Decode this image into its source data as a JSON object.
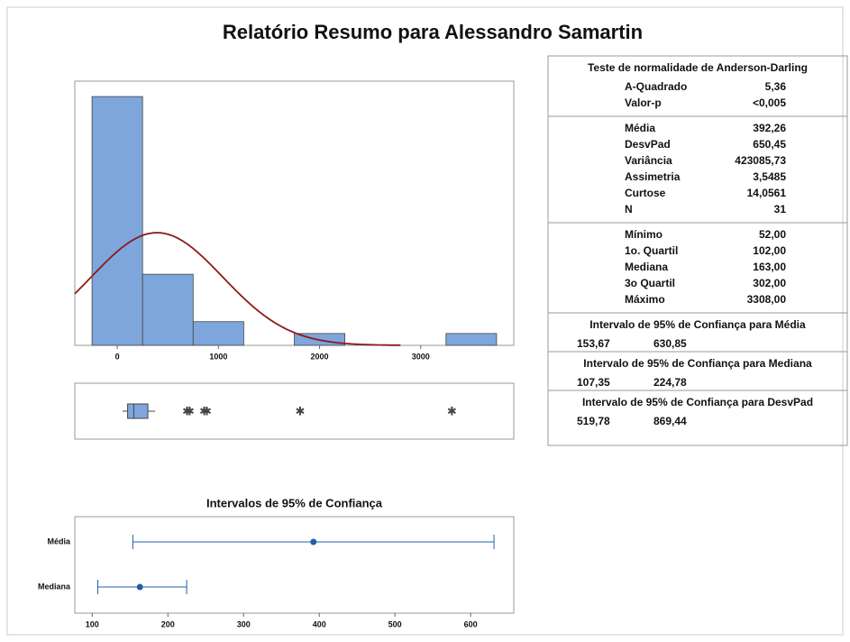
{
  "title": "Relatório Resumo para Alessandro Samartin",
  "chart_data": [
    {
      "type": "histogram",
      "bins": [
        -250,
        250,
        750,
        1250,
        1750,
        2250,
        2750,
        3250,
        3750
      ],
      "values": [
        21,
        6,
        2,
        0,
        1,
        0,
        0,
        1
      ],
      "color": "#7ea6dc",
      "xlim": [
        -420,
        3920
      ],
      "ylim": [
        0,
        22.3
      ],
      "xticks": [
        0,
        1000,
        2000,
        3000
      ],
      "fit": {
        "mean": 392.26,
        "sd": 650.45,
        "n": 31,
        "color": "#8b1a1a"
      }
    },
    {
      "type": "box",
      "xlim": [
        -420,
        3920
      ],
      "whisker_low": 52,
      "q1": 102,
      "median": 163,
      "q3": 302,
      "whisker_high": 374,
      "outliers": [
        690,
        715,
        860,
        885,
        1807,
        3308
      ],
      "color": "#7ea6dc"
    },
    {
      "type": "interval",
      "title": "Intervalos de 95% de Confiança",
      "categories": [
        "Média",
        "Mediana"
      ],
      "values": [
        392.26,
        163
      ],
      "lower": [
        153.67,
        107.35
      ],
      "upper": [
        630.85,
        224.78
      ],
      "xlim": [
        77,
        657
      ],
      "xticks": [
        100,
        200,
        300,
        400,
        500,
        600
      ],
      "color": "#1f5fa8"
    }
  ],
  "stats": [
    {
      "heading": "Teste de normalidade de Anderson-Darling",
      "rows": [
        [
          "A-Quadrado",
          "5,36"
        ],
        [
          "Valor-p",
          "<0,005"
        ]
      ]
    },
    {
      "rows": [
        [
          "Média",
          "392,26"
        ],
        [
          "DesvPad",
          "650,45"
        ],
        [
          "Variância",
          "423085,73"
        ],
        [
          "Assimetria",
          "3,5485"
        ],
        [
          "Curtose",
          "14,0561"
        ],
        [
          "N",
          "31"
        ]
      ]
    },
    {
      "rows": [
        [
          "Mínimo",
          "52,00"
        ],
        [
          "1o. Quartil",
          "102,00"
        ],
        [
          "Mediana",
          "163,00"
        ],
        [
          "3o Quartil",
          "302,00"
        ],
        [
          "Máximo",
          "3308,00"
        ]
      ]
    },
    {
      "heading": "Intervalo de 95% de Confiança para Média",
      "pair": [
        "153,67",
        "630,85"
      ]
    },
    {
      "heading": "Intervalo de 95% de Confiança  para Mediana",
      "pair": [
        "107,35",
        "224,78"
      ]
    },
    {
      "heading": "Intervalo de 95% de Confiança  para DesvPad",
      "pair": [
        "519,78",
        "869,44"
      ]
    }
  ]
}
